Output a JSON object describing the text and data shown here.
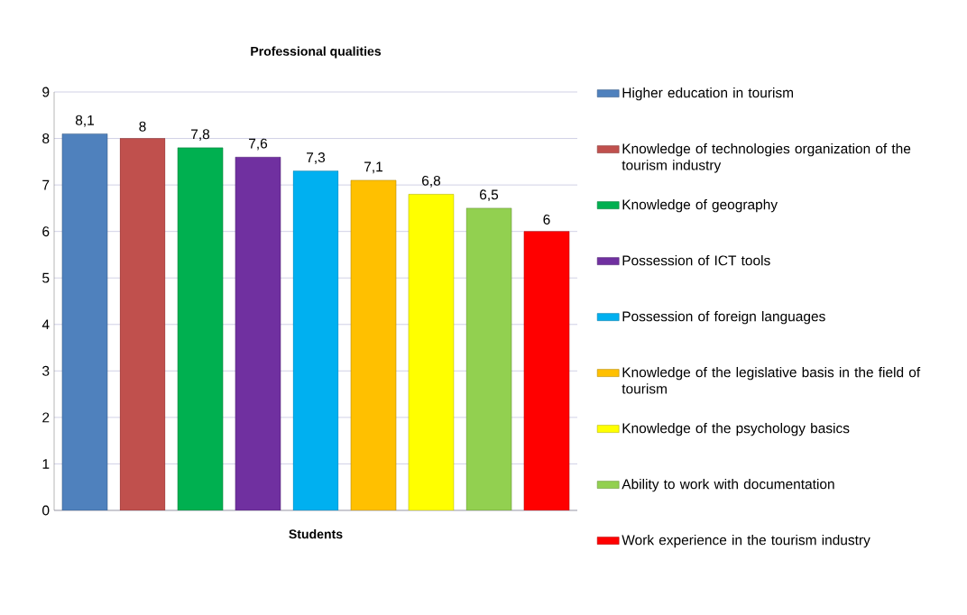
{
  "chart_data": {
    "type": "bar",
    "title": "Professional qualities",
    "categories": [
      "Students"
    ],
    "series": [
      {
        "name": "Higher education in tourism",
        "color": "#4f81bd",
        "values": [
          8.1
        ],
        "value_labels": [
          "8,1"
        ]
      },
      {
        "name": "Knowledge of technologies organization of the tourism industry",
        "color": "#c0504d",
        "values": [
          8
        ],
        "value_labels": [
          "8"
        ]
      },
      {
        "name": "Knowledge of geography",
        "color": "#00b050",
        "values": [
          7.8
        ],
        "value_labels": [
          "7,8"
        ]
      },
      {
        "name": "Possession of ICT tools",
        "color": "#7030a0",
        "values": [
          7.6
        ],
        "value_labels": [
          "7,6"
        ]
      },
      {
        "name": "Possession of foreign languages",
        "color": "#00b0f0",
        "values": [
          7.3
        ],
        "value_labels": [
          "7,3"
        ]
      },
      {
        "name": "Knowledge of the legislative basis in the field of tourism",
        "color": "#ffc000",
        "values": [
          7.1
        ],
        "value_labels": [
          "7,1"
        ]
      },
      {
        "name": "Knowledge of the psychology basics",
        "color": "#ffff00",
        "values": [
          6.8
        ],
        "value_labels": [
          "6,8"
        ]
      },
      {
        "name": "Ability to work with documentation",
        "color": "#92d050",
        "values": [
          6.5
        ],
        "value_labels": [
          "6,5"
        ]
      },
      {
        "name": "Work experience in the tourism industry",
        "color": "#ff0000",
        "values": [
          6
        ],
        "value_labels": [
          "6"
        ]
      }
    ],
    "ylim": [
      0,
      9
    ],
    "yticks": [
      0,
      1,
      2,
      3,
      4,
      5,
      6,
      7,
      8,
      9
    ],
    "grid": "y",
    "legend": "right"
  }
}
